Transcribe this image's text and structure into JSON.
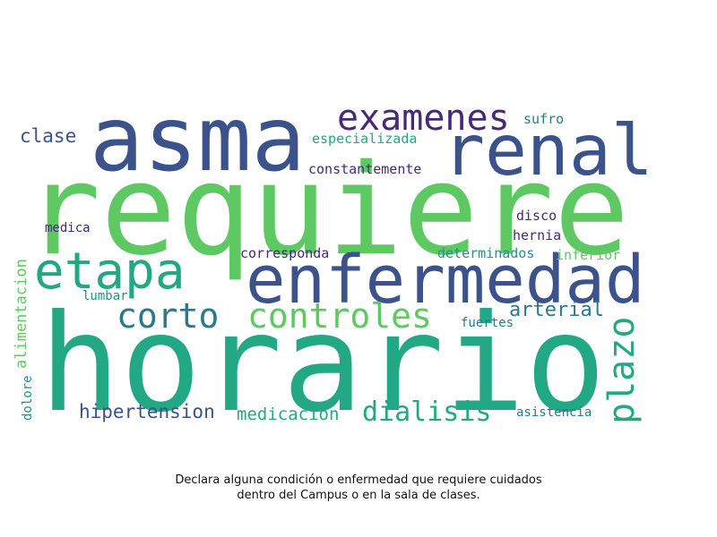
{
  "words": {
    "requiere": "requiere",
    "horario": "horario",
    "asma": "asma",
    "renal": "renal",
    "enfermedad": "enfermedad",
    "examenes": "examenes",
    "etapa": "etapa",
    "controles": "controles",
    "corto": "corto",
    "plazo": "plazo",
    "dialisis": "dialisis",
    "arterial": "arterial",
    "hipertension": "hipertension",
    "medicacion": "medicacion",
    "clase": "clase",
    "alimentacion": "alimentacion",
    "especializada": "especializada",
    "constantemente": "constantemente",
    "sufro": "sufro",
    "disco": "disco",
    "hernia": "hernia",
    "medica": "medica",
    "corresponda": "corresponda",
    "determinados": "determinados",
    "inferior": "inferior",
    "lumbar": "lumbar",
    "fuertes": "fuertes",
    "dolore": "dolore",
    "asistencia": "asistencia"
  },
  "colors": {
    "green_light": "#5ec962",
    "green_teal": "#22a884",
    "blue": "#3b528b",
    "purple": "#482878",
    "teal": "#2a788e",
    "light_teal": "#21918c"
  },
  "caption": {
    "line1": "Declara alguna condición o enfermedad que requiere cuidados",
    "line2": "dentro del Campus o en la sala de clases."
  }
}
